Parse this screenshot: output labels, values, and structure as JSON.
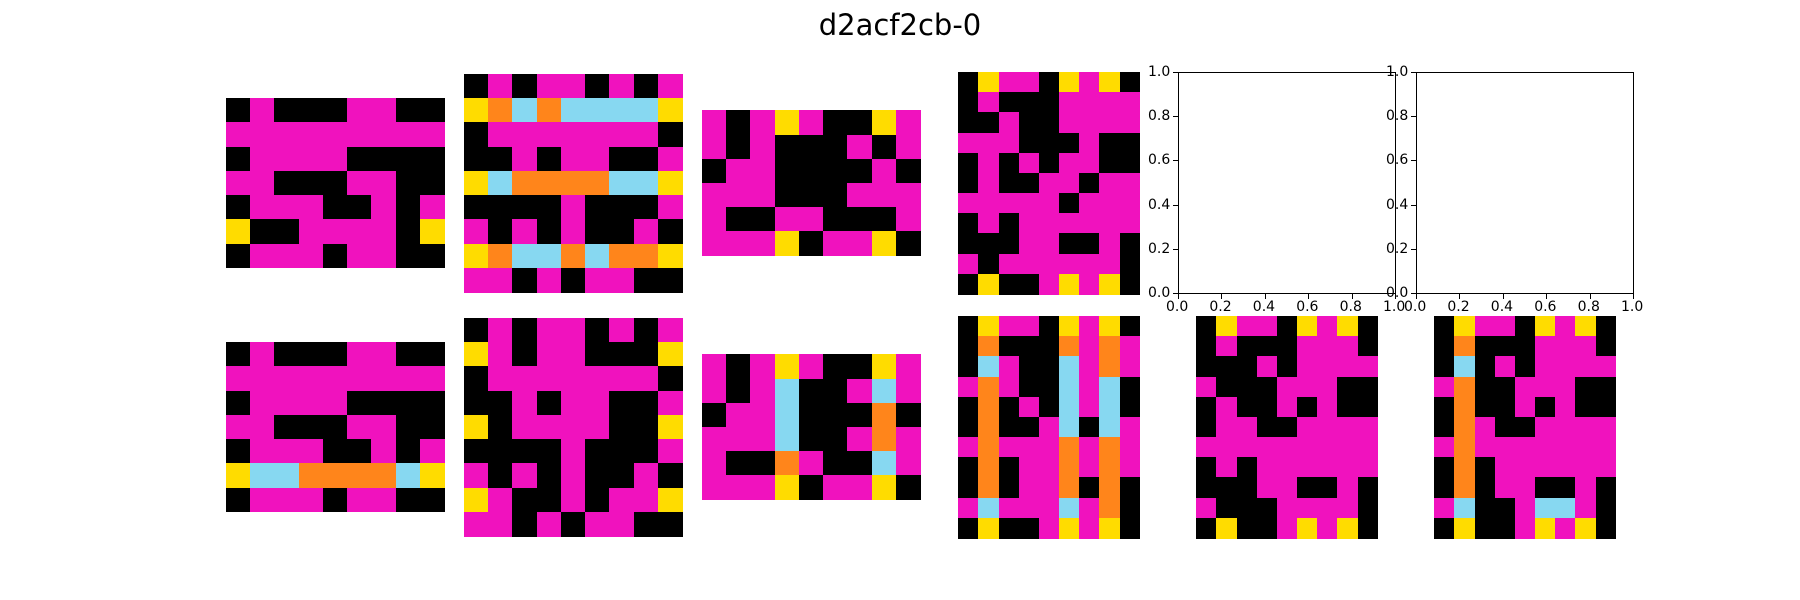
{
  "title": "d2acf2cb-0",
  "colors": {
    "0": "#000000",
    "1": "#1E93FF",
    "2": "#F93C31",
    "3": "#4FCC30",
    "4": "#FFDC00",
    "5": "#999999",
    "6": "#F012BE",
    "7": "#FF851B",
    "8": "#87D8F1",
    "9": "#921231"
  },
  "empty_axes": {
    "x_ticks": [
      "0.0",
      "0.2",
      "0.4",
      "0.6",
      "0.8",
      "1.0"
    ],
    "y_ticks": [
      "0.0",
      "0.2",
      "0.4",
      "0.6",
      "0.8",
      "1.0"
    ]
  },
  "pairs": [
    {
      "input": [
        [
          0,
          6,
          0,
          0,
          0,
          6,
          6,
          0,
          0
        ],
        [
          6,
          6,
          6,
          6,
          6,
          6,
          6,
          6,
          6
        ],
        [
          0,
          6,
          6,
          6,
          6,
          0,
          0,
          0,
          0
        ],
        [
          6,
          6,
          0,
          0,
          0,
          6,
          6,
          0,
          0
        ],
        [
          0,
          6,
          6,
          6,
          0,
          0,
          6,
          0,
          6
        ],
        [
          4,
          0,
          0,
          6,
          6,
          6,
          6,
          0,
          4
        ],
        [
          0,
          6,
          6,
          6,
          0,
          6,
          6,
          0,
          0
        ]
      ],
      "output": [
        [
          0,
          6,
          0,
          0,
          0,
          6,
          6,
          0,
          0
        ],
        [
          6,
          6,
          6,
          6,
          6,
          6,
          6,
          6,
          6
        ],
        [
          0,
          6,
          6,
          6,
          6,
          0,
          0,
          0,
          0
        ],
        [
          6,
          6,
          0,
          0,
          0,
          6,
          6,
          0,
          0
        ],
        [
          0,
          6,
          6,
          6,
          0,
          0,
          6,
          0,
          6
        ],
        [
          4,
          8,
          8,
          7,
          7,
          7,
          7,
          8,
          4
        ],
        [
          0,
          6,
          6,
          6,
          0,
          6,
          6,
          0,
          0
        ]
      ]
    },
    {
      "input": [
        [
          0,
          6,
          0,
          6,
          6,
          0,
          6,
          0,
          6
        ],
        [
          4,
          7,
          8,
          7,
          8,
          8,
          8,
          8,
          4
        ],
        [
          0,
          6,
          6,
          6,
          6,
          6,
          6,
          6,
          0
        ],
        [
          0,
          0,
          6,
          0,
          6,
          6,
          0,
          0,
          6
        ],
        [
          4,
          8,
          7,
          7,
          7,
          7,
          8,
          8,
          4
        ],
        [
          0,
          0,
          0,
          0,
          6,
          0,
          0,
          0,
          6
        ],
        [
          6,
          0,
          6,
          0,
          6,
          0,
          0,
          6,
          0
        ],
        [
          4,
          7,
          8,
          8,
          7,
          8,
          7,
          7,
          4
        ],
        [
          6,
          6,
          0,
          6,
          0,
          6,
          6,
          0,
          0
        ]
      ],
      "output": [
        [
          0,
          6,
          0,
          6,
          6,
          0,
          6,
          0,
          6
        ],
        [
          4,
          6,
          0,
          6,
          6,
          0,
          0,
          0,
          4
        ],
        [
          0,
          6,
          6,
          6,
          6,
          6,
          6,
          6,
          0
        ],
        [
          0,
          0,
          6,
          0,
          6,
          6,
          0,
          0,
          6
        ],
        [
          4,
          0,
          6,
          6,
          6,
          6,
          0,
          0,
          4
        ],
        [
          0,
          0,
          0,
          0,
          6,
          0,
          0,
          0,
          6
        ],
        [
          6,
          0,
          6,
          0,
          6,
          0,
          0,
          6,
          0
        ],
        [
          4,
          6,
          0,
          0,
          6,
          0,
          6,
          6,
          4
        ],
        [
          6,
          6,
          0,
          6,
          0,
          6,
          6,
          0,
          0
        ]
      ]
    },
    {
      "input": [
        [
          6,
          0,
          6,
          4,
          6,
          0,
          0,
          4,
          6
        ],
        [
          6,
          0,
          6,
          0,
          0,
          0,
          6,
          0,
          6
        ],
        [
          0,
          6,
          6,
          0,
          0,
          0,
          0,
          6,
          0
        ],
        [
          6,
          6,
          6,
          0,
          0,
          0,
          6,
          6,
          6
        ],
        [
          6,
          0,
          0,
          6,
          6,
          0,
          0,
          0,
          6
        ],
        [
          6,
          6,
          6,
          4,
          0,
          6,
          6,
          4,
          0
        ]
      ],
      "output": [
        [
          6,
          0,
          6,
          4,
          6,
          0,
          0,
          4,
          6
        ],
        [
          6,
          0,
          6,
          8,
          0,
          0,
          6,
          8,
          6
        ],
        [
          0,
          6,
          6,
          8,
          0,
          0,
          0,
          7,
          0
        ],
        [
          6,
          6,
          6,
          8,
          0,
          0,
          6,
          7,
          6
        ],
        [
          6,
          0,
          0,
          7,
          6,
          0,
          0,
          8,
          6
        ],
        [
          6,
          6,
          6,
          4,
          0,
          6,
          6,
          4,
          0
        ]
      ]
    },
    {
      "input": [
        [
          0,
          4,
          6,
          6,
          0,
          4,
          6,
          4,
          0
        ],
        [
          0,
          6,
          0,
          0,
          0,
          6,
          6,
          6,
          6
        ],
        [
          0,
          0,
          6,
          0,
          0,
          6,
          6,
          6,
          6
        ],
        [
          6,
          6,
          6,
          0,
          0,
          0,
          6,
          0,
          0
        ],
        [
          0,
          6,
          0,
          6,
          0,
          6,
          6,
          0,
          0
        ],
        [
          0,
          6,
          0,
          0,
          6,
          6,
          0,
          6,
          6
        ],
        [
          6,
          6,
          6,
          6,
          6,
          0,
          6,
          6,
          6
        ],
        [
          0,
          6,
          0,
          6,
          6,
          6,
          6,
          6,
          6
        ],
        [
          0,
          0,
          0,
          6,
          6,
          0,
          0,
          6,
          0
        ],
        [
          6,
          0,
          6,
          6,
          6,
          6,
          6,
          6,
          0
        ],
        [
          0,
          4,
          0,
          0,
          6,
          4,
          6,
          4,
          0
        ]
      ],
      "output": [
        [
          0,
          4,
          6,
          6,
          0,
          4,
          6,
          4,
          0
        ],
        [
          0,
          7,
          0,
          0,
          0,
          7,
          6,
          7,
          6
        ],
        [
          0,
          8,
          6,
          0,
          0,
          8,
          6,
          7,
          6
        ],
        [
          6,
          7,
          6,
          0,
          0,
          8,
          6,
          8,
          0
        ],
        [
          0,
          7,
          0,
          6,
          0,
          8,
          6,
          8,
          0
        ],
        [
          0,
          7,
          0,
          0,
          6,
          8,
          0,
          8,
          6
        ],
        [
          6,
          7,
          6,
          6,
          6,
          7,
          6,
          7,
          6
        ],
        [
          0,
          7,
          0,
          6,
          6,
          7,
          6,
          7,
          6
        ],
        [
          0,
          7,
          0,
          6,
          6,
          7,
          0,
          7,
          0
        ],
        [
          6,
          8,
          6,
          6,
          6,
          8,
          6,
          7,
          0
        ],
        [
          0,
          4,
          0,
          0,
          6,
          4,
          6,
          4,
          0
        ]
      ]
    },
    {
      "input": null,
      "output": [
        [
          0,
          4,
          6,
          6,
          0,
          4,
          6,
          4,
          0
        ],
        [
          0,
          6,
          0,
          0,
          0,
          6,
          6,
          6,
          0
        ],
        [
          0,
          0,
          0,
          6,
          0,
          6,
          6,
          6,
          6
        ],
        [
          6,
          0,
          0,
          0,
          6,
          6,
          6,
          0,
          0
        ],
        [
          0,
          6,
          0,
          0,
          6,
          0,
          6,
          0,
          0
        ],
        [
          0,
          6,
          6,
          0,
          0,
          6,
          6,
          6,
          6
        ],
        [
          6,
          6,
          6,
          6,
          6,
          6,
          6,
          6,
          6
        ],
        [
          0,
          6,
          0,
          6,
          6,
          6,
          6,
          6,
          6
        ],
        [
          0,
          0,
          0,
          6,
          6,
          0,
          0,
          6,
          0
        ],
        [
          6,
          0,
          0,
          0,
          6,
          6,
          6,
          6,
          0
        ],
        [
          0,
          4,
          0,
          0,
          6,
          4,
          6,
          4,
          0
        ]
      ]
    },
    {
      "input": null,
      "output": [
        [
          0,
          4,
          6,
          6,
          0,
          4,
          6,
          4,
          0
        ],
        [
          0,
          7,
          0,
          0,
          0,
          6,
          6,
          6,
          0
        ],
        [
          0,
          8,
          0,
          6,
          0,
          6,
          6,
          6,
          6
        ],
        [
          6,
          7,
          0,
          0,
          6,
          6,
          6,
          0,
          0
        ],
        [
          0,
          7,
          0,
          0,
          6,
          0,
          6,
          0,
          0
        ],
        [
          0,
          7,
          6,
          0,
          0,
          6,
          6,
          6,
          6
        ],
        [
          6,
          7,
          6,
          6,
          6,
          6,
          6,
          6,
          6
        ],
        [
          0,
          7,
          0,
          6,
          6,
          6,
          6,
          6,
          6
        ],
        [
          0,
          7,
          0,
          6,
          6,
          0,
          0,
          6,
          0
        ],
        [
          6,
          8,
          0,
          0,
          6,
          8,
          8,
          6,
          0
        ],
        [
          0,
          4,
          0,
          0,
          6,
          4,
          6,
          4,
          0
        ]
      ]
    }
  ]
}
